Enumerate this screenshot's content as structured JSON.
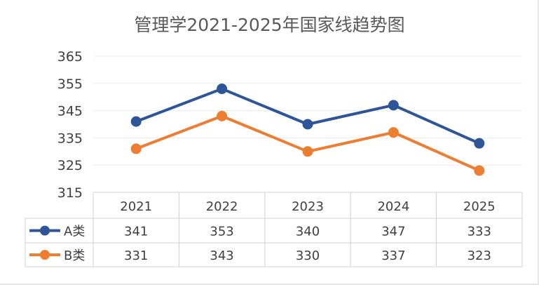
{
  "chart_data": {
    "type": "line",
    "title": "管理学2021-2025年国家线趋势图",
    "categories": [
      "2021",
      "2022",
      "2023",
      "2024",
      "2025"
    ],
    "series": [
      {
        "name": "A类",
        "values": [
          341,
          353,
          340,
          347,
          333
        ],
        "color": "#2E5597"
      },
      {
        "name": "B类",
        "values": [
          331,
          343,
          330,
          337,
          323
        ],
        "color": "#ED7D31"
      }
    ],
    "ylim": [
      315,
      365
    ],
    "yticks": [
      315,
      325,
      335,
      345,
      355,
      365
    ],
    "grid": true,
    "data_table": true
  }
}
